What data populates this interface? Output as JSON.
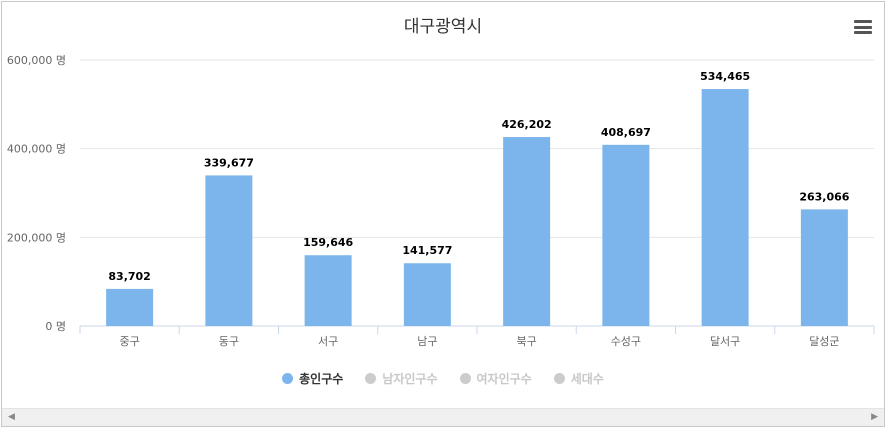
{
  "chart_data": {
    "type": "bar",
    "title": "대구광역시",
    "categories": [
      "중구",
      "동구",
      "서구",
      "남구",
      "북구",
      "수성구",
      "달서구",
      "달성군"
    ],
    "series": [
      {
        "name": "총인구수",
        "values": [
          83702,
          339677,
          159646,
          141577,
          426202,
          408697,
          534465,
          263066
        ],
        "color": "#7cb5ec",
        "visible": true
      }
    ],
    "value_labels": [
      "83,702",
      "339,677",
      "159,646",
      "141,577",
      "426,202",
      "408,697",
      "534,465",
      "263,066"
    ],
    "y_ticks": [
      0,
      200000,
      400000,
      600000
    ],
    "y_tick_labels": [
      "0 명",
      "200,000 명",
      "400,000 명",
      "600,000 명"
    ],
    "ylim": [
      0,
      600000
    ],
    "grid": true,
    "legend_position": "bottom-center"
  },
  "legend": [
    {
      "label": "총인구수",
      "color": "#7cb5ec",
      "active": true
    },
    {
      "label": "남자인구수",
      "color": "#cccccc",
      "active": false
    },
    {
      "label": "여자인구수",
      "color": "#cccccc",
      "active": false
    },
    {
      "label": "세대수",
      "color": "#cccccc",
      "active": false
    }
  ],
  "icons": {
    "menu": "hamburger-menu-icon",
    "scroll_left": "scroll-left-arrow-icon",
    "scroll_right": "scroll-right-arrow-icon"
  },
  "scroll": {
    "left_glyph": "◀",
    "right_glyph": "▶"
  }
}
